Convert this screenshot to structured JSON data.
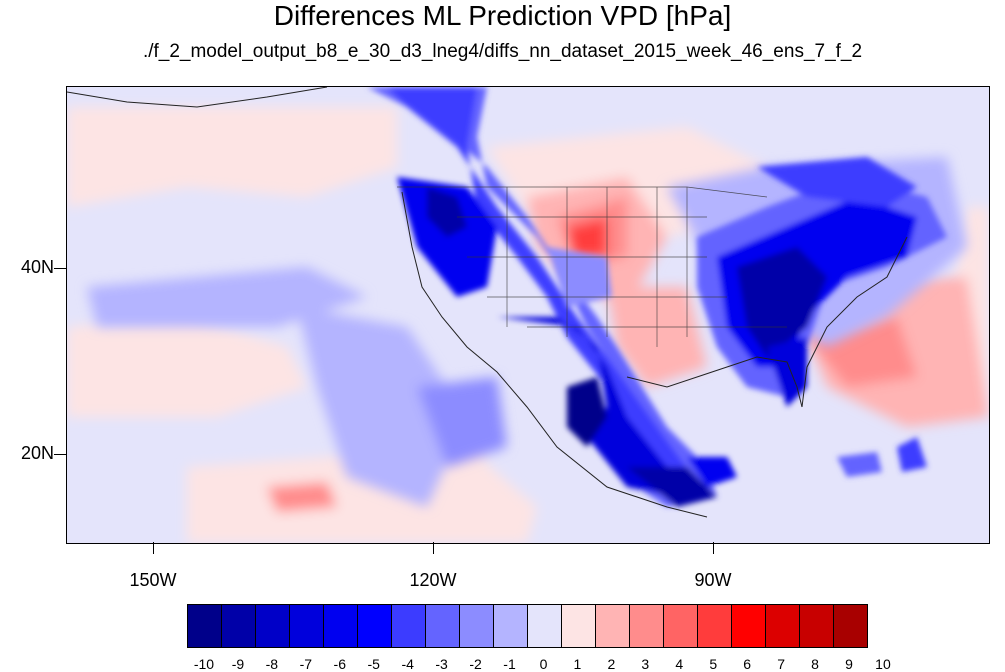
{
  "title": "Differences ML Prediction VPD [hPa]",
  "subtitle": "./f_2_model_output_b8_e_30_d3_lneg4/diffs_nn_dataset_2015_week_46_ens_7_f_2",
  "map": {
    "lon_labels": [
      "150W",
      "120W",
      "90W"
    ],
    "lat_labels": [
      "40N",
      "20N"
    ]
  },
  "colorbar": {
    "labels": [
      "-10",
      "-9",
      "-8",
      "-7",
      "-6",
      "-5",
      "-4",
      "-3",
      "-2",
      "-1",
      "0",
      "1",
      "2",
      "3",
      "4",
      "5",
      "6",
      "7",
      "8",
      "9",
      "10"
    ],
    "colors": [
      "#00008a",
      "#0000a8",
      "#0000c8",
      "#0000dc",
      "#0000f0",
      "#0000ff",
      "#3c3cff",
      "#6464ff",
      "#8c8cff",
      "#b4b4ff",
      "#e4e4fb",
      "#fde4e4",
      "#ffb4b4",
      "#ff8c8c",
      "#ff6464",
      "#ff3c3c",
      "#ff0000",
      "#dc0000",
      "#c80000",
      "#a80000",
      "#8a0000"
    ]
  }
}
